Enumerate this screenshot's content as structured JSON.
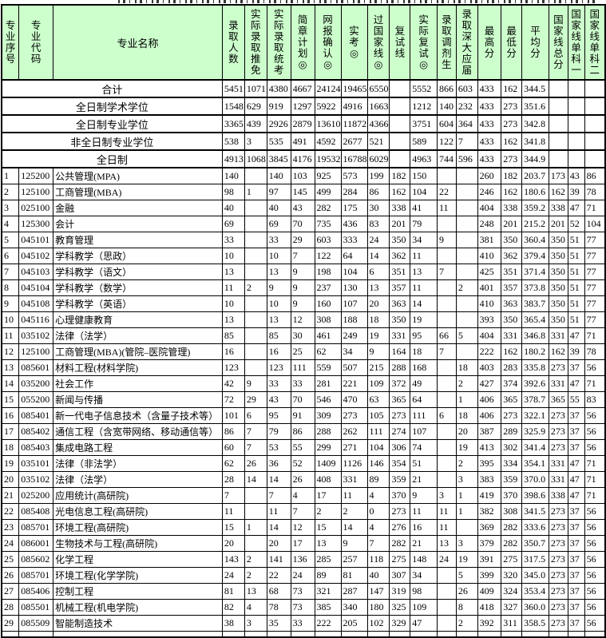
{
  "colors": {
    "header_bg": "#ccffcc",
    "grid_border": "#000000",
    "text": "#000000",
    "row_bg": "#ffffff"
  },
  "table": {
    "headers": [
      "专业序号",
      "专业代码",
      "专业名称",
      "录取人数",
      "实际录取推免",
      "实际录取统考",
      "简章计划◎",
      "网报确认◎",
      "实考◎",
      "过国家线◎",
      "复试线",
      "实际复试◎",
      "录取调剂生",
      "录取深大应届",
      "最高分",
      "最低分",
      "平均分",
      "国家线总分",
      "国家线单科一",
      "国家线单科二"
    ],
    "summary_rows": [
      {
        "label": "合计",
        "values": [
          "5451",
          "1071",
          "4380",
          "4667",
          "24124",
          "19465",
          "6550",
          "",
          "5552",
          "866",
          "603",
          "433",
          "162",
          "344.5",
          "",
          "",
          ""
        ]
      },
      {
        "label": "全日制学术学位",
        "values": [
          "1548",
          "629",
          "919",
          "1297",
          "5922",
          "4916",
          "1663",
          "",
          "1212",
          "140",
          "232",
          "433",
          "273",
          "351.6",
          "",
          "",
          ""
        ]
      },
      {
        "label": "全日制专业学位",
        "values": [
          "3365",
          "439",
          "2926",
          "2879",
          "13610",
          "11872",
          "4366",
          "",
          "3751",
          "604",
          "364",
          "433",
          "273",
          "342.8",
          "",
          "",
          ""
        ]
      },
      {
        "label": "非全日制专业学位",
        "values": [
          "538",
          "3",
          "535",
          "491",
          "4592",
          "2677",
          "521",
          "",
          "589",
          "122",
          "7",
          "433",
          "162",
          "341.8",
          "",
          "",
          ""
        ]
      },
      {
        "label": "全日制",
        "values": [
          "4913",
          "1068",
          "3845",
          "4176",
          "19532",
          "16788",
          "6029",
          "",
          "4963",
          "744",
          "596",
          "433",
          "273",
          "344.9",
          "",
          "",
          ""
        ]
      }
    ],
    "data_rows": [
      {
        "seq": "1",
        "code": "125200",
        "name": "公共管理(MPA)",
        "values": [
          "140",
          "",
          "140",
          "103",
          "925",
          "573",
          "199",
          "182",
          "150",
          "",
          "",
          "260",
          "182",
          "203.7",
          "173",
          "43",
          "86"
        ]
      },
      {
        "seq": "2",
        "code": "125100",
        "name": "工商管理(MBA)",
        "values": [
          "98",
          "1",
          "97",
          "145",
          "499",
          "284",
          "86",
          "162",
          "104",
          "22",
          "",
          "246",
          "162",
          "180.6",
          "162",
          "39",
          "78"
        ]
      },
      {
        "seq": "3",
        "code": "025100",
        "name": "金融",
        "values": [
          "40",
          "",
          "40",
          "43",
          "282",
          "175",
          "30",
          "338",
          "41",
          "11",
          "",
          "404",
          "338",
          "359.2",
          "338",
          "47",
          "71"
        ]
      },
      {
        "seq": "4",
        "code": "125300",
        "name": "会计",
        "values": [
          "69",
          "",
          "69",
          "70",
          "735",
          "436",
          "83",
          "201",
          "79",
          "",
          "",
          "248",
          "201",
          "215.2",
          "201",
          "52",
          "104"
        ]
      },
      {
        "seq": "5",
        "code": "045101",
        "name": "教育管理",
        "values": [
          "33",
          "",
          "33",
          "29",
          "603",
          "333",
          "24",
          "350",
          "34",
          "9",
          "",
          "381",
          "350",
          "360.4",
          "350",
          "51",
          "77"
        ]
      },
      {
        "seq": "6",
        "code": "045102",
        "name": "学科教学（思政）",
        "values": [
          "10",
          "",
          "10",
          "7",
          "122",
          "64",
          "14",
          "362",
          "11",
          "",
          "",
          "410",
          "362",
          "379.4",
          "350",
          "51",
          "77"
        ]
      },
      {
        "seq": "7",
        "code": "045103",
        "name": "学科教学（语文）",
        "values": [
          "13",
          "",
          "13",
          "9",
          "198",
          "104",
          "6",
          "351",
          "13",
          "7",
          "",
          "425",
          "351",
          "371.4",
          "350",
          "51",
          "77"
        ]
      },
      {
        "seq": "8",
        "code": "045104",
        "name": "学科教学（数学）",
        "values": [
          "11",
          "2",
          "9",
          "9",
          "237",
          "130",
          "13",
          "357",
          "11",
          "",
          "2",
          "401",
          "357",
          "373.8",
          "350",
          "51",
          "77"
        ]
      },
      {
        "seq": "9",
        "code": "045108",
        "name": "学科教学（英语）",
        "values": [
          "10",
          "",
          "10",
          "9",
          "160",
          "107",
          "20",
          "363",
          "14",
          "",
          "",
          "410",
          "363",
          "383.7",
          "350",
          "51",
          "77"
        ]
      },
      {
        "seq": "10",
        "code": "045116",
        "name": "心理健康教育",
        "values": [
          "13",
          "",
          "13",
          "12",
          "308",
          "188",
          "18",
          "350",
          "19",
          "",
          "",
          "393",
          "350",
          "365.4",
          "350",
          "51",
          "77"
        ]
      },
      {
        "seq": "11",
        "code": "035102",
        "name": "法律（法学）",
        "values": [
          "85",
          "",
          "85",
          "30",
          "461",
          "249",
          "19",
          "331",
          "95",
          "66",
          "5",
          "404",
          "331",
          "346.8",
          "331",
          "47",
          "71"
        ]
      },
      {
        "seq": "12",
        "code": "125100",
        "name": "工商管理(MBA)(管院–医院管理)",
        "values": [
          "16",
          "",
          "16",
          "25",
          "62",
          "34",
          "9",
          "164",
          "18",
          "7",
          "",
          "222",
          "162",
          "180.2",
          "162",
          "39",
          "78"
        ]
      },
      {
        "seq": "13",
        "code": "085601",
        "name": "材料工程(材料学院)",
        "values": [
          "123",
          "",
          "123",
          "111",
          "559",
          "507",
          "215",
          "288",
          "168",
          "",
          "18",
          "403",
          "283",
          "335.8",
          "273",
          "37",
          "56"
        ]
      },
      {
        "seq": "14",
        "code": "035200",
        "name": "社会工作",
        "values": [
          "42",
          "9",
          "33",
          "33",
          "281",
          "221",
          "109",
          "372",
          "49",
          "",
          "2",
          "427",
          "374",
          "392.6",
          "331",
          "47",
          "71"
        ]
      },
      {
        "seq": "15",
        "code": "055200",
        "name": "新闻与传播",
        "values": [
          "72",
          "29",
          "43",
          "70",
          "546",
          "470",
          "63",
          "365",
          "64",
          "",
          "1",
          "406",
          "365",
          "378.7",
          "365",
          "55",
          "83"
        ]
      },
      {
        "seq": "16",
        "code": "085401",
        "name": "新一代电子信息技术（含量子技术等）",
        "values": [
          "101",
          "6",
          "95",
          "91",
          "309",
          "273",
          "105",
          "273",
          "111",
          "6",
          "18",
          "406",
          "273",
          "322.1",
          "273",
          "37",
          "56"
        ]
      },
      {
        "seq": "17",
        "code": "085402",
        "name": "通信工程（含宽带网络、移动通信等）",
        "values": [
          "86",
          "7",
          "79",
          "86",
          "288",
          "262",
          "111",
          "274",
          "107",
          "",
          "20",
          "387",
          "289",
          "325.9",
          "273",
          "37",
          "56"
        ]
      },
      {
        "seq": "18",
        "code": "085403",
        "name": "集成电路工程",
        "values": [
          "60",
          "7",
          "53",
          "55",
          "299",
          "271",
          "104",
          "306",
          "74",
          "",
          "19",
          "413",
          "302",
          "341.4",
          "273",
          "37",
          "56"
        ]
      },
      {
        "seq": "19",
        "code": "035101",
        "name": "法律（非法学）",
        "values": [
          "62",
          "26",
          "36",
          "52",
          "1409",
          "1126",
          "146",
          "354",
          "51",
          "",
          "2",
          "395",
          "334",
          "354.1",
          "331",
          "47",
          "71"
        ]
      },
      {
        "seq": "20",
        "code": "035102",
        "name": "法律（法学）",
        "values": [
          "28",
          "14",
          "14",
          "26",
          "408",
          "331",
          "89",
          "359",
          "21",
          "",
          "3",
          "383",
          "359",
          "370.0",
          "331",
          "47",
          "71"
        ]
      },
      {
        "seq": "21",
        "code": "025200",
        "name": "应用统计(高研院)",
        "values": [
          "7",
          "",
          "7",
          "4",
          "17",
          "11",
          "4",
          "370",
          "9",
          "3",
          "1",
          "419",
          "370",
          "398.6",
          "338",
          "47",
          "71"
        ]
      },
      {
        "seq": "22",
        "code": "085408",
        "name": "光电信息工程(高研院)",
        "values": [
          "11",
          "",
          "11",
          "7",
          "2",
          "2",
          "0",
          "273",
          "11",
          "11",
          "1",
          "382",
          "308",
          "341.5",
          "273",
          "37",
          "56"
        ]
      },
      {
        "seq": "23",
        "code": "085701",
        "name": "环境工程(高研院)",
        "values": [
          "15",
          "1",
          "14",
          "12",
          "15",
          "14",
          "4",
          "276",
          "16",
          "11",
          "",
          "369",
          "282",
          "333.6",
          "273",
          "37",
          "56"
        ]
      },
      {
        "seq": "24",
        "code": "086001",
        "name": "生物技术与工程(高研院)",
        "values": [
          "20",
          "",
          "20",
          "17",
          "13",
          "9",
          "7",
          "282",
          "21",
          "13",
          "3",
          "379",
          "282",
          "350.7",
          "273",
          "37",
          "56"
        ]
      },
      {
        "seq": "25",
        "code": "085602",
        "name": "化学工程",
        "values": [
          "143",
          "2",
          "141",
          "136",
          "285",
          "257",
          "118",
          "275",
          "148",
          "24",
          "19",
          "391",
          "275",
          "317.5",
          "273",
          "37",
          "56"
        ]
      },
      {
        "seq": "26",
        "code": "085701",
        "name": "环境工程(化学学院)",
        "values": [
          "24",
          "2",
          "22",
          "24",
          "89",
          "81",
          "40",
          "307",
          "34",
          "",
          "5",
          "399",
          "320",
          "345.0",
          "273",
          "37",
          "56"
        ]
      },
      {
        "seq": "27",
        "code": "085406",
        "name": "控制工程",
        "values": [
          "81",
          "13",
          "68",
          "73",
          "321",
          "287",
          "147",
          "319",
          "98",
          "",
          "26",
          "409",
          "324",
          "353.4",
          "273",
          "37",
          "56"
        ]
      },
      {
        "seq": "28",
        "code": "085501",
        "name": "机械工程(机电学院)",
        "values": [
          "82",
          "4",
          "78",
          "73",
          "385",
          "340",
          "180",
          "325",
          "109",
          "",
          "8",
          "418",
          "327",
          "360.0",
          "273",
          "37",
          "56"
        ]
      },
      {
        "seq": "29",
        "code": "085509",
        "name": "智能制造技术",
        "values": [
          "38",
          "3",
          "35",
          "33",
          "222",
          "205",
          "102",
          "329",
          "47",
          "",
          "2",
          "392",
          "311",
          "358.5",
          "273",
          "37",
          "56"
        ]
      }
    ]
  }
}
